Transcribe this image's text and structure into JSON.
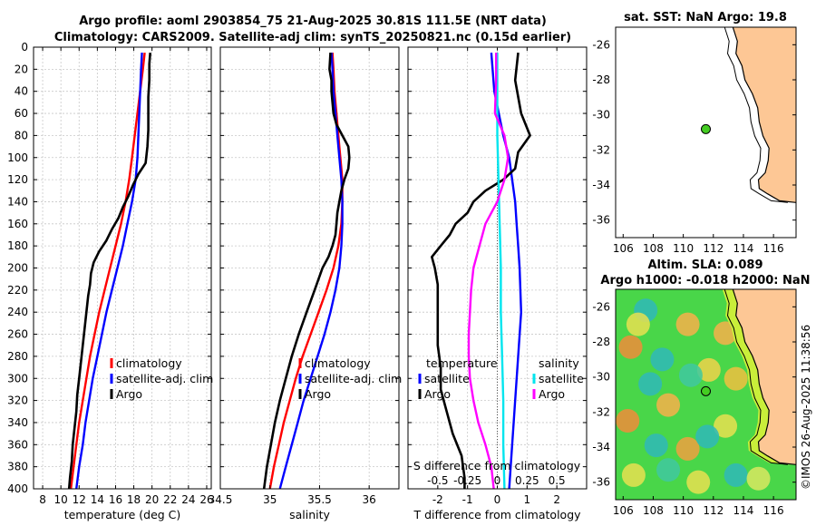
{
  "title": {
    "line1": "Argo profile: aoml 2903854_75 21-Aug-2025 30.81S 111.5E (NRT data)",
    "line2": "Climatology: CARS2009. Satellite-adj clim: synTS_20250821.nc (0.15d earlier)"
  },
  "watermark": "©IMOS 26-Aug-2025 11:38:56",
  "colors": {
    "climatology": "#ff0000",
    "satellite": "#0000ff",
    "argo": "#000000",
    "sat_diff": "#00e5ee",
    "argo_sdiff": "#ff00ff",
    "land": "#fdc795"
  },
  "chart_data": [
    {
      "id": "temperature",
      "type": "line",
      "xlabel": "temperature (deg C)",
      "ylabel": "",
      "xlim": [
        7,
        26.5
      ],
      "ylim": [
        400,
        0
      ],
      "xticks": [
        8,
        10,
        12,
        14,
        16,
        18,
        20,
        22,
        24,
        26
      ],
      "yticks": [
        0,
        20,
        40,
        60,
        80,
        100,
        120,
        140,
        160,
        180,
        200,
        220,
        240,
        260,
        280,
        300,
        320,
        340,
        360,
        380,
        400
      ],
      "grid": true,
      "legend": [
        "climatology",
        "satellite-adj. clim",
        "Argo"
      ],
      "series": [
        {
          "name": "climatology",
          "color": "#ff0000",
          "depth": [
            5,
            20,
            40,
            60,
            80,
            100,
            120,
            140,
            160,
            180,
            200,
            220,
            240,
            260,
            280,
            300,
            320,
            340,
            360,
            380,
            400
          ],
          "values": [
            19.2,
            19.0,
            18.7,
            18.4,
            18.1,
            17.8,
            17.5,
            17.1,
            16.6,
            16.0,
            15.4,
            14.8,
            14.2,
            13.7,
            13.2,
            12.8,
            12.4,
            12.0,
            11.7,
            11.4,
            11.1
          ]
        },
        {
          "name": "satellite-adj. clim",
          "color": "#0000ff",
          "depth": [
            5,
            20,
            40,
            60,
            80,
            100,
            120,
            140,
            160,
            180,
            200,
            220,
            240,
            260,
            280,
            300,
            320,
            340,
            360,
            380,
            400
          ],
          "values": [
            18.9,
            18.8,
            18.7,
            18.6,
            18.5,
            18.4,
            18.2,
            17.8,
            17.3,
            16.8,
            16.2,
            15.6,
            15.0,
            14.5,
            14.0,
            13.5,
            13.1,
            12.7,
            12.4,
            12.0,
            11.7
          ]
        },
        {
          "name": "Argo",
          "color": "#000000",
          "depth": [
            5,
            15,
            30,
            45,
            60,
            75,
            90,
            105,
            115,
            125,
            135,
            145,
            155,
            165,
            175,
            185,
            195,
            205,
            215,
            225,
            240,
            255,
            270,
            285,
            300,
            315,
            330,
            345,
            360,
            375,
            390,
            400
          ],
          "values": [
            19.8,
            19.7,
            19.7,
            19.6,
            19.6,
            19.6,
            19.5,
            19.3,
            18.5,
            17.9,
            17.4,
            16.8,
            16.3,
            15.6,
            15.0,
            14.2,
            13.6,
            13.3,
            13.2,
            13.0,
            12.8,
            12.6,
            12.4,
            12.2,
            12.0,
            11.8,
            11.7,
            11.5,
            11.3,
            11.2,
            11.0,
            10.9
          ]
        }
      ]
    },
    {
      "id": "salinity",
      "type": "line",
      "xlabel": "salinity",
      "ylabel": "",
      "xlim": [
        34.5,
        36.3
      ],
      "ylim": [
        400,
        0
      ],
      "xticks": [
        34.5,
        35,
        35.5,
        36
      ],
      "xticklabels": [
        "34.5",
        "35",
        "35.5",
        "36"
      ],
      "grid": true,
      "legend": [
        "climatology",
        "satellite-adj. clim",
        "Argo"
      ],
      "series": [
        {
          "name": "climatology",
          "color": "#ff0000",
          "depth": [
            5,
            20,
            40,
            60,
            80,
            100,
            120,
            140,
            160,
            180,
            200,
            220,
            240,
            260,
            280,
            300,
            320,
            340,
            360,
            380,
            400
          ],
          "values": [
            35.63,
            35.64,
            35.65,
            35.67,
            35.69,
            35.71,
            35.73,
            35.73,
            35.72,
            35.69,
            35.64,
            35.57,
            35.49,
            35.41,
            35.33,
            35.26,
            35.2,
            35.14,
            35.09,
            35.04,
            35.0
          ]
        },
        {
          "name": "satellite-adj. clim",
          "color": "#0000ff",
          "depth": [
            5,
            20,
            40,
            60,
            80,
            100,
            120,
            140,
            160,
            180,
            200,
            220,
            240,
            260,
            280,
            300,
            320,
            340,
            360,
            380,
            400
          ],
          "values": [
            35.62,
            35.63,
            35.64,
            35.66,
            35.68,
            35.7,
            35.72,
            35.73,
            35.73,
            35.72,
            35.7,
            35.66,
            35.61,
            35.55,
            35.48,
            35.41,
            35.34,
            35.28,
            35.22,
            35.16,
            35.1
          ]
        },
        {
          "name": "Argo",
          "color": "#000000",
          "depth": [
            5,
            20,
            30,
            40,
            50,
            60,
            70,
            80,
            90,
            100,
            110,
            120,
            130,
            140,
            150,
            160,
            170,
            180,
            190,
            200,
            220,
            240,
            260,
            280,
            300,
            320,
            340,
            360,
            380,
            400
          ],
          "values": [
            35.61,
            35.6,
            35.62,
            35.62,
            35.63,
            35.64,
            35.67,
            35.73,
            35.79,
            35.8,
            35.79,
            35.75,
            35.72,
            35.7,
            35.68,
            35.67,
            35.66,
            35.63,
            35.59,
            35.53,
            35.45,
            35.37,
            35.29,
            35.22,
            35.16,
            35.1,
            35.05,
            35.01,
            34.97,
            34.94
          ]
        }
      ]
    },
    {
      "id": "differences",
      "type": "line",
      "xlabel": "T difference from climatology",
      "top_label": "S difference from climatology",
      "xlim": [
        -3,
        3
      ],
      "ylim": [
        400,
        0
      ],
      "xticks": [
        -2,
        -1,
        0,
        1,
        2
      ],
      "top_ticks": [
        -0.5,
        -0.25,
        0,
        0.25,
        0.5
      ],
      "top_ticklabels": [
        "-0.5",
        "-0.25",
        "0",
        "0.25",
        "0.5"
      ],
      "grid": true,
      "legend_temperature": {
        "heading": "temperature",
        "items": [
          "satellite",
          "Argo"
        ]
      },
      "legend_salinity": {
        "heading": "salinity",
        "items": [
          "satellite",
          "Argo"
        ]
      },
      "series": [
        {
          "name": "T satellite",
          "color": "#0000ff",
          "depth": [
            5,
            40,
            80,
            100,
            120,
            140,
            160,
            180,
            200,
            240,
            280,
            320,
            360,
            400
          ],
          "values": [
            -0.2,
            -0.1,
            0.2,
            0.4,
            0.5,
            0.6,
            0.65,
            0.7,
            0.75,
            0.8,
            0.7,
            0.6,
            0.5,
            0.4
          ]
        },
        {
          "name": "T Argo",
          "color": "#000000",
          "depth": [
            5,
            30,
            60,
            80,
            95,
            110,
            120,
            130,
            140,
            150,
            160,
            170,
            180,
            190,
            200,
            215,
            230,
            250,
            270,
            290,
            310,
            330,
            350,
            370,
            390,
            400
          ],
          "values": [
            0.7,
            0.6,
            0.8,
            1.1,
            0.7,
            0.6,
            0.2,
            -0.4,
            -0.8,
            -1.0,
            -1.4,
            -1.6,
            -1.9,
            -2.2,
            -2.1,
            -2.0,
            -2.0,
            -2.0,
            -2.0,
            -1.9,
            -1.9,
            -1.7,
            -1.5,
            -1.2,
            -1.1,
            -1.1
          ]
        },
        {
          "name": "S satellite",
          "color": "#00e5ee",
          "depth": [
            5,
            40,
            80,
            120,
            160,
            200,
            240,
            280,
            320,
            360,
            400
          ],
          "values": [
            0.0,
            0.0,
            0.0,
            0.01,
            0.02,
            0.03,
            0.03,
            0.04,
            0.05,
            0.05,
            0.06
          ]
        },
        {
          "name": "S Argo",
          "color": "#ff00ff",
          "depth": [
            5,
            30,
            60,
            80,
            100,
            120,
            140,
            160,
            180,
            200,
            220,
            240,
            260,
            280,
            300,
            320,
            340,
            360,
            380,
            400
          ],
          "values": [
            -0.01,
            -0.01,
            -0.02,
            0.06,
            0.09,
            0.06,
            0.0,
            -0.1,
            -0.15,
            -0.2,
            -0.22,
            -0.23,
            -0.24,
            -0.24,
            -0.23,
            -0.2,
            -0.16,
            -0.1,
            -0.05,
            -0.03
          ]
        }
      ]
    },
    {
      "id": "map_sst",
      "type": "scatter",
      "title": "sat. SST: NaN Argo: 19.8",
      "xlim": [
        105.5,
        117.5
      ],
      "ylim": [
        -37,
        -25
      ],
      "xticks": [
        106,
        108,
        110,
        112,
        114,
        116
      ],
      "yticks": [
        -26,
        -28,
        -30,
        -32,
        -34,
        -36
      ],
      "point": {
        "lon": 111.5,
        "lat": -30.81,
        "color": "#44cc22"
      }
    },
    {
      "id": "map_sla",
      "type": "heatmap",
      "title_line1": "Altim. SLA: 0.089",
      "title_line2": "Argo h1000: -0.018 h2000: NaN",
      "xlim": [
        105.5,
        117.5
      ],
      "ylim": [
        -37,
        -25
      ],
      "xticks": [
        106,
        108,
        110,
        112,
        114,
        116
      ],
      "yticks": [
        -26,
        -28,
        -30,
        -32,
        -34,
        -36
      ],
      "point": {
        "lon": 111.5,
        "lat": -30.81,
        "color": "#44cc22"
      }
    }
  ]
}
